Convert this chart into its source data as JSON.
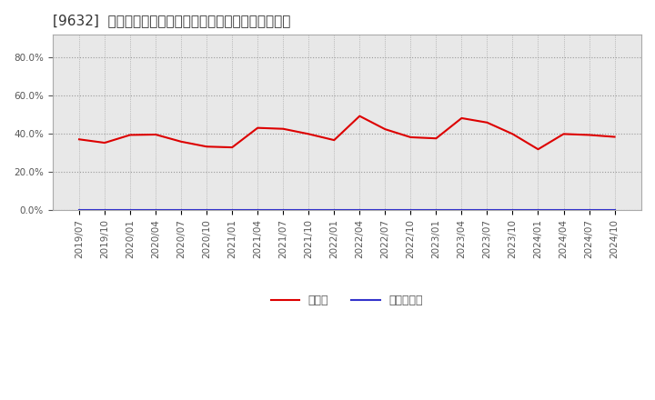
{
  "title": "[9632]  現預金、有利子負債の総資産に対する比率の推移",
  "x_labels": [
    "2019/07",
    "2019/10",
    "2020/01",
    "2020/04",
    "2020/07",
    "2020/10",
    "2021/01",
    "2021/04",
    "2021/07",
    "2021/10",
    "2022/01",
    "2022/04",
    "2022/07",
    "2022/10",
    "2023/01",
    "2023/04",
    "2023/07",
    "2023/10",
    "2024/01",
    "2024/04",
    "2024/07",
    "2024/10"
  ],
  "cash_values": [
    0.372,
    0.354,
    0.395,
    0.397,
    0.36,
    0.334,
    0.33,
    0.432,
    0.427,
    0.4,
    0.368,
    0.494,
    0.425,
    0.383,
    0.377,
    0.483,
    0.46,
    0.4,
    0.32,
    0.4,
    0.395,
    0.385
  ],
  "debt_values": [
    0.0,
    0.0,
    0.0,
    0.0,
    0.0,
    0.0,
    0.0,
    0.0,
    0.0,
    0.0,
    0.0,
    0.0,
    0.0,
    0.0,
    0.0,
    0.0,
    0.0,
    0.0,
    0.0,
    0.0,
    0.0,
    0.0
  ],
  "cash_color": "#dd0000",
  "debt_color": "#3333cc",
  "legend_cash": "現預金",
  "legend_debt": "有利子負債",
  "background_color": "#ffffff",
  "plot_bg_color": "#e8e8e8",
  "grid_color": "#999999",
  "ylim": [
    0.0,
    0.92
  ],
  "yticks": [
    0.0,
    0.2,
    0.4,
    0.6,
    0.8
  ],
  "title_fontsize": 11,
  "tick_fontsize": 7.5,
  "legend_fontsize": 9
}
